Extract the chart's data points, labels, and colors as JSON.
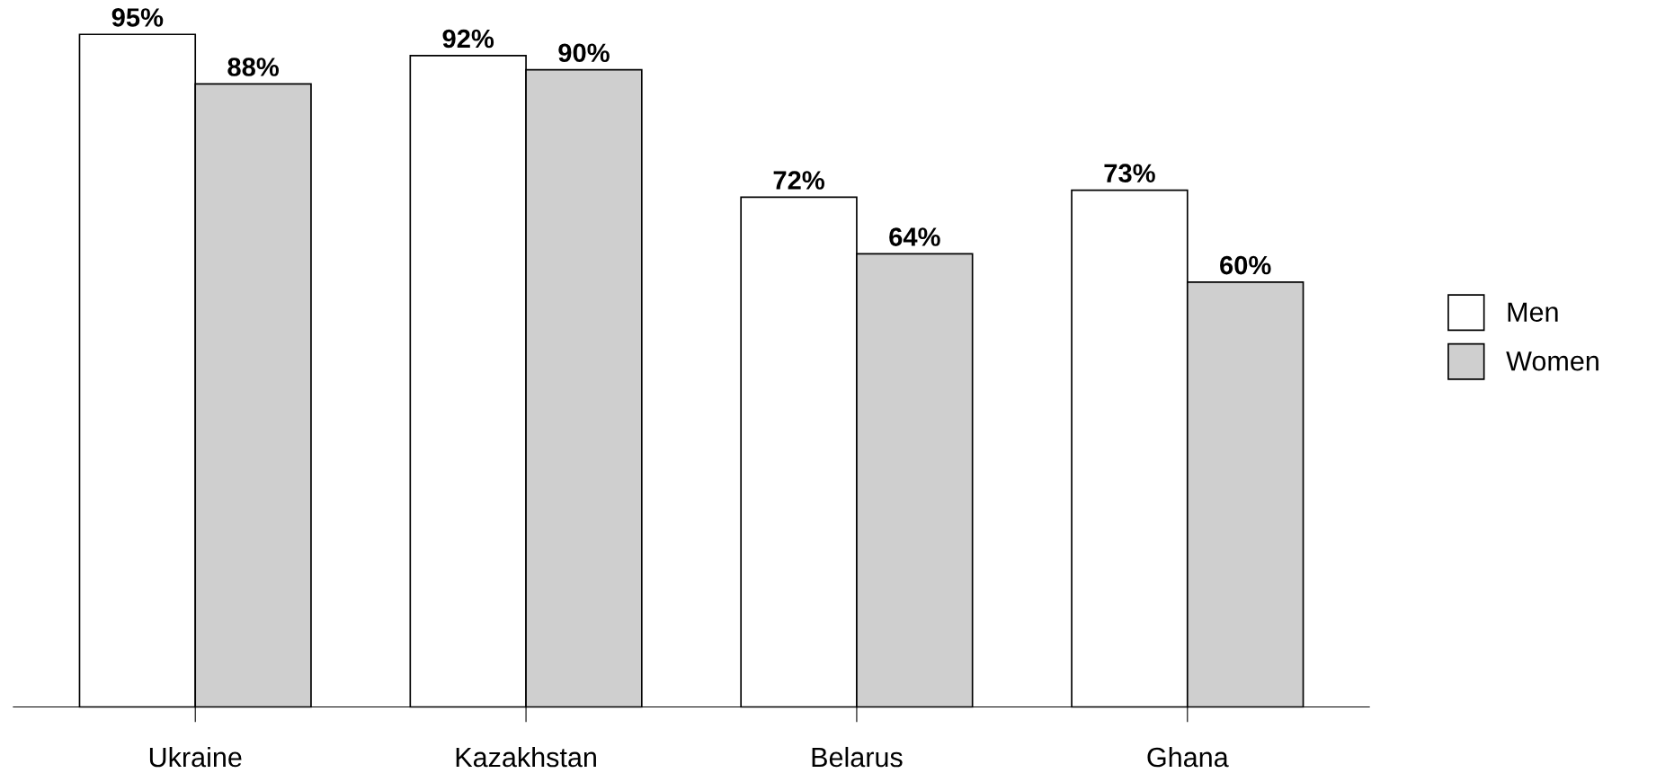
{
  "chart_data": {
    "type": "bar",
    "categories": [
      "Ukraine",
      "Kazakhstan",
      "Belarus",
      "Ghana"
    ],
    "series": [
      {
        "name": "Men",
        "color": "#ffffff",
        "values": [
          95,
          92,
          72,
          73
        ],
        "value_labels": [
          "95%",
          "92%",
          "72%",
          "73%"
        ]
      },
      {
        "name": "Women",
        "color": "#cfcfcf",
        "values": [
          88,
          90,
          64,
          60
        ],
        "value_labels": [
          "88%",
          "90%",
          "64%",
          "60%"
        ]
      }
    ],
    "grid": false,
    "legend": "right"
  }
}
